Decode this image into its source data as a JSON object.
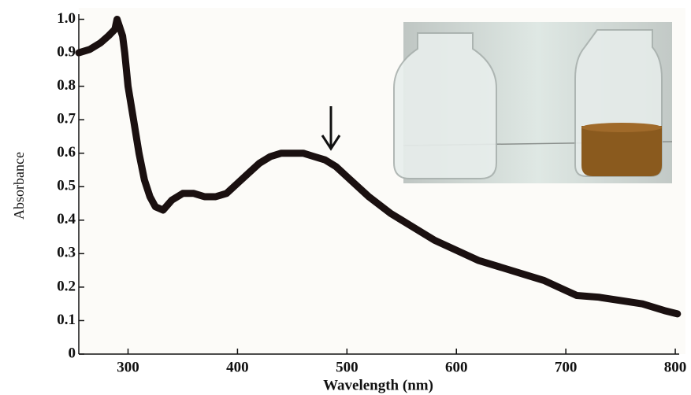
{
  "chart_data": {
    "type": "line",
    "x_label": "Wavelength (nm)",
    "y_label": "Absorbance",
    "x": [
      255,
      265,
      275,
      282,
      288,
      290,
      292,
      295,
      297,
      300,
      305,
      310,
      315,
      320,
      325,
      332,
      340,
      350,
      360,
      370,
      380,
      390,
      400,
      410,
      420,
      430,
      440,
      450,
      460,
      470,
      480,
      490,
      500,
      520,
      540,
      560,
      580,
      600,
      620,
      640,
      660,
      680,
      700,
      710,
      730,
      750,
      770,
      790,
      802
    ],
    "values": [
      0.9,
      0.91,
      0.93,
      0.95,
      0.97,
      1.0,
      0.98,
      0.95,
      0.9,
      0.8,
      0.7,
      0.6,
      0.52,
      0.47,
      0.44,
      0.43,
      0.46,
      0.48,
      0.48,
      0.47,
      0.47,
      0.48,
      0.51,
      0.54,
      0.57,
      0.59,
      0.6,
      0.6,
      0.6,
      0.59,
      0.58,
      0.56,
      0.53,
      0.47,
      0.42,
      0.38,
      0.34,
      0.31,
      0.28,
      0.26,
      0.24,
      0.22,
      0.19,
      0.175,
      0.17,
      0.16,
      0.15,
      0.13,
      0.12
    ],
    "color": "#1a1010",
    "xlim": [
      255,
      805
    ],
    "ylim": [
      0,
      1.02
    ],
    "xticks": [
      300,
      400,
      500,
      600,
      700,
      800
    ],
    "yticks": [
      0,
      0.1,
      0.2,
      0.3,
      0.4,
      0.5,
      0.6,
      0.7,
      0.8,
      0.9,
      {
        "value": 1,
        "label": "1.0"
      }
    ]
  }
}
